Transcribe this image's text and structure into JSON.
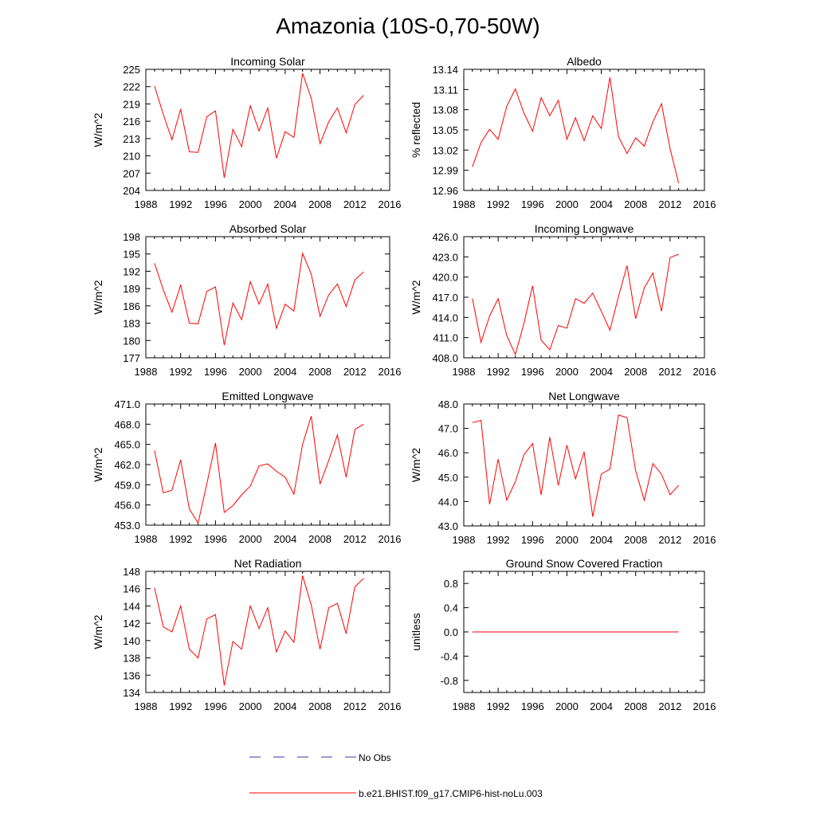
{
  "title": "Amazonia (10S-0,70-50W)",
  "colors": {
    "model": "#ff0000",
    "obs": "#3a3aa8",
    "axis": "#000000"
  },
  "legend": {
    "obs_label": "No Obs",
    "model_label": "b.e21.BHIST.f09_g17.CMIP6-hist-noLu.003"
  },
  "chart_data": [
    {
      "type": "line",
      "title": "Incoming Solar",
      "ylabel": "W/m^2",
      "xlim": [
        1988,
        2016
      ],
      "xticks": [
        1988,
        1992,
        1996,
        2000,
        2004,
        2008,
        2012,
        2016
      ],
      "ylim": [
        204,
        225
      ],
      "yticks": [
        "204",
        "207",
        "210",
        "213",
        "216",
        "219",
        "222",
        "225"
      ],
      "series": [
        {
          "name": "b.e21.BHIST.f09_g17.CMIP6-hist-noLu.003",
          "x": [
            1989,
            1990,
            1991,
            1992,
            1993,
            1994,
            1995,
            1996,
            1997,
            1998,
            1999,
            2000,
            2001,
            2002,
            2003,
            2004,
            2005,
            2006,
            2007,
            2008,
            2009,
            2010,
            2011,
            2012,
            2013
          ],
          "values": [
            222.1,
            217.2,
            212.8,
            218.1,
            210.7,
            210.6,
            216.8,
            217.8,
            206.2,
            214.6,
            211.6,
            218.7,
            214.3,
            218.3,
            209.6,
            214.2,
            213.2,
            224.3,
            220.0,
            212.1,
            215.9,
            218.3,
            214.0,
            218.9,
            220.5
          ]
        }
      ]
    },
    {
      "type": "line",
      "title": "Albedo",
      "ylabel": "% reflected",
      "xlim": [
        1988,
        2016
      ],
      "xticks": [
        1988,
        1992,
        1996,
        2000,
        2004,
        2008,
        2012,
        2016
      ],
      "ylim": [
        12.96,
        13.14
      ],
      "yticks": [
        "12.96",
        "12.99",
        "13.02",
        "13.05",
        "13.08",
        "13.11",
        "13.14"
      ],
      "series": [
        {
          "name": "b.e21.BHIST.f09_g17.CMIP6-hist-noLu.003",
          "x": [
            1989,
            1990,
            1991,
            1992,
            1993,
            1994,
            1995,
            1996,
            1997,
            1998,
            1999,
            2000,
            2001,
            2002,
            2003,
            2004,
            2005,
            2006,
            2007,
            2008,
            2009,
            2010,
            2011,
            2012,
            2013
          ],
          "values": [
            12.995,
            13.031,
            13.051,
            13.036,
            13.085,
            13.111,
            13.075,
            13.048,
            13.098,
            13.071,
            13.094,
            13.036,
            13.068,
            13.034,
            13.071,
            13.052,
            13.128,
            13.04,
            13.015,
            13.038,
            13.026,
            13.062,
            13.089,
            13.022,
            12.971
          ]
        }
      ]
    },
    {
      "type": "line",
      "title": "Absorbed Solar",
      "ylabel": "W/m^2",
      "xlim": [
        1988,
        2016
      ],
      "xticks": [
        1988,
        1992,
        1996,
        2000,
        2004,
        2008,
        2012,
        2016
      ],
      "ylim": [
        177,
        198
      ],
      "yticks": [
        "177",
        "180",
        "183",
        "186",
        "189",
        "192",
        "195",
        "198"
      ],
      "series": [
        {
          "name": "b.e21.BHIST.f09_g17.CMIP6-hist-noLu.003",
          "x": [
            1989,
            1990,
            1991,
            1992,
            1993,
            1994,
            1995,
            1996,
            1997,
            1998,
            1999,
            2000,
            2001,
            2002,
            2003,
            2004,
            2005,
            2006,
            2007,
            2008,
            2009,
            2010,
            2011,
            2012,
            2013
          ],
          "values": [
            193.4,
            188.8,
            184.9,
            189.6,
            183.0,
            182.9,
            188.5,
            189.3,
            179.2,
            186.5,
            183.6,
            190.2,
            186.3,
            189.8,
            182.1,
            186.3,
            185.1,
            195.1,
            191.5,
            184.2,
            187.9,
            189.8,
            185.9,
            190.5,
            191.9
          ]
        }
      ]
    },
    {
      "type": "line",
      "title": "Incoming Longwave",
      "ylabel": "W/m^2",
      "xlim": [
        1988,
        2016
      ],
      "xticks": [
        1988,
        1992,
        1996,
        2000,
        2004,
        2008,
        2012,
        2016
      ],
      "ylim": [
        408.0,
        426.0
      ],
      "yticks": [
        "408.0",
        "411.0",
        "414.0",
        "417.0",
        "420.0",
        "423.0",
        "426.0"
      ],
      "series": [
        {
          "name": "b.e21.BHIST.f09_g17.CMIP6-hist-noLu.003",
          "x": [
            1989,
            1990,
            1991,
            1992,
            1993,
            1994,
            1995,
            1996,
            1997,
            1998,
            1999,
            2000,
            2001,
            2002,
            2003,
            2004,
            2005,
            2006,
            2007,
            2008,
            2009,
            2010,
            2011,
            2012,
            2013
          ],
          "values": [
            416.8,
            410.3,
            414.2,
            416.8,
            411.3,
            408.5,
            413.1,
            418.7,
            410.6,
            409.2,
            412.8,
            412.4,
            416.8,
            416.1,
            417.6,
            414.9,
            412.1,
            417.1,
            421.7,
            413.8,
            418.4,
            420.6,
            414.9,
            422.9,
            423.4
          ]
        }
      ]
    },
    {
      "type": "line",
      "title": "Emitted Longwave",
      "ylabel": "W/m^2",
      "xlim": [
        1988,
        2016
      ],
      "xticks": [
        1988,
        1992,
        1996,
        2000,
        2004,
        2008,
        2012,
        2016
      ],
      "ylim": [
        453.0,
        471.0
      ],
      "yticks": [
        "453.0",
        "456.0",
        "459.0",
        "462.0",
        "465.0",
        "468.0",
        "471.0"
      ],
      "series": [
        {
          "name": "b.e21.BHIST.f09_g17.CMIP6-hist-noLu.003",
          "x": [
            1989,
            1990,
            1991,
            1992,
            1993,
            1994,
            1995,
            1996,
            1997,
            1998,
            1999,
            2000,
            2001,
            2002,
            2003,
            2004,
            2005,
            2006,
            2007,
            2008,
            2009,
            2010,
            2011,
            2012,
            2013
          ],
          "values": [
            464.1,
            457.8,
            458.2,
            462.7,
            455.4,
            453.3,
            459.1,
            465.2,
            454.9,
            455.9,
            457.5,
            458.8,
            461.8,
            462.1,
            461.0,
            460.1,
            457.6,
            465.0,
            469.2,
            459.1,
            462.6,
            466.4,
            460.1,
            467.2,
            468.0
          ]
        }
      ]
    },
    {
      "type": "line",
      "title": "Net Longwave",
      "ylabel": "W/m^2",
      "xlim": [
        1988,
        2016
      ],
      "xticks": [
        1988,
        1992,
        1996,
        2000,
        2004,
        2008,
        2012,
        2016
      ],
      "ylim": [
        43.0,
        48.0
      ],
      "yticks": [
        "43.0",
        "44.0",
        "45.0",
        "46.0",
        "47.0",
        "48.0"
      ],
      "series": [
        {
          "name": "b.e21.BHIST.f09_g17.CMIP6-hist-noLu.003",
          "x": [
            1989,
            1990,
            1991,
            1992,
            1993,
            1994,
            1995,
            1996,
            1997,
            1998,
            1999,
            2000,
            2001,
            2002,
            2003,
            2004,
            2005,
            2006,
            2007,
            2008,
            2009,
            2010,
            2011,
            2012,
            2013
          ],
          "values": [
            47.24,
            47.33,
            43.89,
            45.74,
            44.06,
            44.81,
            45.92,
            46.38,
            44.27,
            46.64,
            44.66,
            46.31,
            44.93,
            46.04,
            43.38,
            45.13,
            45.33,
            47.55,
            47.44,
            45.26,
            44.05,
            45.56,
            45.12,
            44.28,
            44.67
          ]
        }
      ]
    },
    {
      "type": "line",
      "title": "Net Radiation",
      "ylabel": "W/m^2",
      "xlim": [
        1988,
        2016
      ],
      "xticks": [
        1988,
        1992,
        1996,
        2000,
        2004,
        2008,
        2012,
        2016
      ],
      "ylim": [
        134,
        148
      ],
      "yticks": [
        "134",
        "136",
        "138",
        "140",
        "142",
        "144",
        "146",
        "148"
      ],
      "series": [
        {
          "name": "b.e21.BHIST.f09_g17.CMIP6-hist-noLu.003",
          "x": [
            1989,
            1990,
            1991,
            1992,
            1993,
            1994,
            1995,
            1996,
            1997,
            1998,
            1999,
            2000,
            2001,
            2002,
            2003,
            2004,
            2005,
            2006,
            2007,
            2008,
            2009,
            2010,
            2011,
            2012,
            2013
          ],
          "values": [
            146.1,
            141.6,
            141.0,
            144.0,
            139.0,
            138.0,
            142.5,
            143.0,
            134.8,
            139.9,
            139.0,
            144.0,
            141.4,
            143.8,
            138.7,
            141.1,
            139.8,
            147.5,
            144.1,
            139.0,
            143.8,
            144.3,
            140.8,
            146.2,
            147.2
          ]
        }
      ]
    },
    {
      "type": "line",
      "title": "Ground Snow Covered Fraction",
      "ylabel": "unitless",
      "xlim": [
        1988,
        2016
      ],
      "xticks": [
        1988,
        1992,
        1996,
        2000,
        2004,
        2008,
        2012,
        2016
      ],
      "ylim": [
        -1.0,
        1.0
      ],
      "yticks": [
        "-0.8",
        "-0.4",
        "0.0",
        "0.4",
        "0.8"
      ],
      "series": [
        {
          "name": "b.e21.BHIST.f09_g17.CMIP6-hist-noLu.003",
          "x": [
            1989,
            1990,
            1991,
            1992,
            1993,
            1994,
            1995,
            1996,
            1997,
            1998,
            1999,
            2000,
            2001,
            2002,
            2003,
            2004,
            2005,
            2006,
            2007,
            2008,
            2009,
            2010,
            2011,
            2012,
            2013
          ],
          "values": [
            0,
            0,
            0,
            0,
            0,
            0,
            0,
            0,
            0,
            0,
            0,
            0,
            0,
            0,
            0,
            0,
            0,
            0,
            0,
            0,
            0,
            0,
            0,
            0,
            0
          ]
        }
      ]
    }
  ]
}
